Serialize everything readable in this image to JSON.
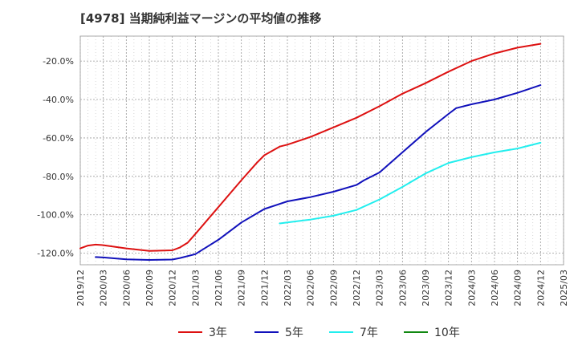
{
  "chart_data": {
    "type": "line",
    "title": "[4978]  当期純利益マージンの平均値の推移",
    "xlabel": "",
    "ylabel": "",
    "ylim": [
      -126,
      -7
    ],
    "grid": true,
    "legend_position": "bottom",
    "y_ticks": [
      "-20.0%",
      "-40.0%",
      "-60.0%",
      "-80.0%",
      "-100.0%",
      "-120.0%"
    ],
    "y_tick_values": [
      -20,
      -40,
      -60,
      -80,
      -100,
      -120
    ],
    "x_ticks": [
      "2019/12",
      "2020/03",
      "2020/06",
      "2020/09",
      "2020/12",
      "2021/03",
      "2021/06",
      "2021/09",
      "2021/12",
      "2022/03",
      "2022/06",
      "2022/09",
      "2022/12",
      "2023/03",
      "2023/06",
      "2023/09",
      "2023/12",
      "2024/03",
      "2024/06",
      "2024/09",
      "2024/12",
      "2025/03"
    ],
    "series": [
      {
        "name": "3年",
        "color": "#dd1111",
        "x": [
          "2019/12",
          "2020/01",
          "2020/02",
          "2020/03",
          "2020/06",
          "2020/09",
          "2020/12",
          "2021/01",
          "2021/02",
          "2021/03",
          "2021/06",
          "2021/09",
          "2021/11",
          "2021/12",
          "2022/02",
          "2022/03",
          "2022/06",
          "2022/09",
          "2022/12",
          "2023/03",
          "2023/06",
          "2023/09",
          "2023/12",
          "2024/03",
          "2024/06",
          "2024/09",
          "2024/12"
        ],
        "values": [
          -117.5,
          -116,
          -115.5,
          -115.8,
          -117.5,
          -118.8,
          -118.5,
          -117,
          -114.5,
          -110,
          -96,
          -82,
          -73,
          -69,
          -64.5,
          -63.5,
          -59.5,
          -54.5,
          -49.5,
          -43.5,
          -37,
          -31.5,
          -25.5,
          -20,
          -16,
          -13,
          -11
        ]
      },
      {
        "name": "5年",
        "color": "#1111bb",
        "x": [
          "2020/02",
          "2020/03",
          "2020/06",
          "2020/09",
          "2020/12",
          "2021/01",
          "2021/03",
          "2021/06",
          "2021/09",
          "2021/12",
          "2022/03",
          "2022/06",
          "2022/09",
          "2022/12",
          "2023/01",
          "2023/03",
          "2023/06",
          "2023/09",
          "2023/12",
          "2024/01",
          "2024/03",
          "2024/06",
          "2024/09",
          "2024/12"
        ],
        "values": [
          -122,
          -122.2,
          -123.2,
          -123.5,
          -123.3,
          -122.5,
          -120.5,
          -113,
          -104,
          -97,
          -93,
          -90.8,
          -88,
          -84.5,
          -82,
          -78,
          -67.5,
          -57,
          -47.5,
          -44.5,
          -42.5,
          -40,
          -36.5,
          -32.5
        ]
      },
      {
        "name": "7年",
        "color": "#22eeee",
        "x": [
          "2022/02",
          "2022/03",
          "2022/06",
          "2022/09",
          "2022/12",
          "2023/03",
          "2023/06",
          "2023/09",
          "2023/12",
          "2024/03",
          "2024/06",
          "2024/09",
          "2024/12"
        ],
        "values": [
          -104.5,
          -104,
          -102.5,
          -100.5,
          -97.5,
          -92,
          -85.5,
          -78.5,
          -73,
          -70,
          -67.5,
          -65.5,
          -62.5
        ]
      },
      {
        "name": "10年",
        "color": "#118811",
        "x": [],
        "values": []
      }
    ]
  }
}
